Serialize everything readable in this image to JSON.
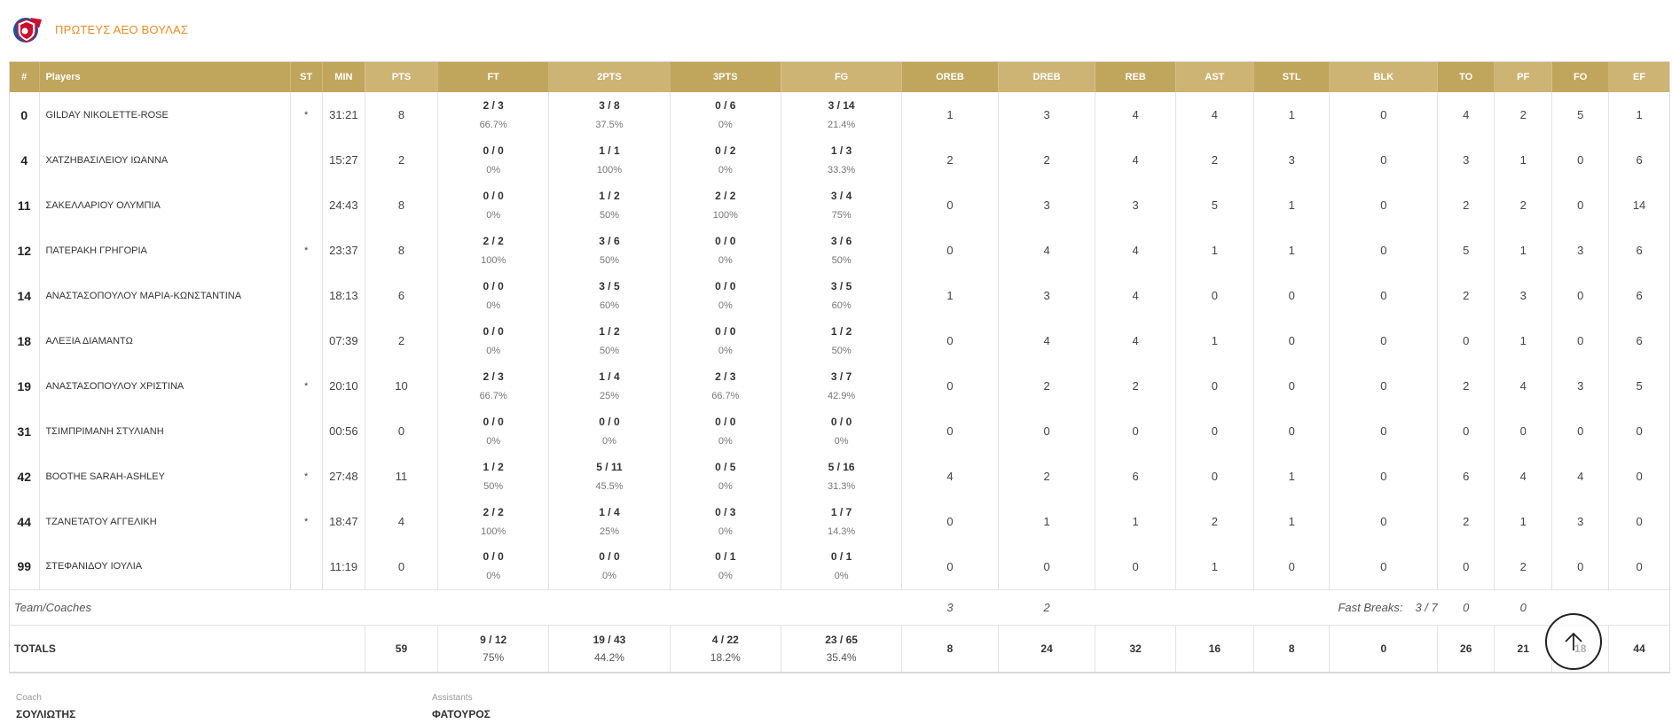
{
  "team": {
    "name": "ΠΡΩΤΕΥΣ ΑΕΟ ΒΟΥΛΑΣ",
    "logo_icon": "team-logo-icon",
    "accent_color": "#f08a24"
  },
  "header_color": "#c0a55c",
  "columns": [
    "#",
    "Players",
    "ST",
    "MIN",
    "PTS",
    "FT",
    "2PTS",
    "3PTS",
    "FG",
    "OREB",
    "DREB",
    "REB",
    "AST",
    "STL",
    "BLK",
    "TO",
    "PF",
    "FO",
    "EF"
  ],
  "players": [
    {
      "num": "0",
      "name": "GILDAY NIKOLETTE-ROSE",
      "st": "*",
      "min": "31:21",
      "pts": "8",
      "ft": "2 / 3",
      "ft_pct": "66.7%",
      "p2": "3 / 8",
      "p2_pct": "37.5%",
      "p3": "0 / 6",
      "p3_pct": "0%",
      "fg": "3 / 14",
      "fg_pct": "21.4%",
      "oreb": "1",
      "dreb": "3",
      "reb": "4",
      "ast": "4",
      "stl": "1",
      "blk": "0",
      "to": "4",
      "pf": "2",
      "fo": "5",
      "ef": "1"
    },
    {
      "num": "4",
      "name": "ΧΑΤΖΗΒΑΣΙΛΕΙΟΥ ΙΩΑΝΝΑ",
      "st": "",
      "min": "15:27",
      "pts": "2",
      "ft": "0 / 0",
      "ft_pct": "0%",
      "p2": "1 / 1",
      "p2_pct": "100%",
      "p3": "0 / 2",
      "p3_pct": "0%",
      "fg": "1 / 3",
      "fg_pct": "33.3%",
      "oreb": "2",
      "dreb": "2",
      "reb": "4",
      "ast": "2",
      "stl": "3",
      "blk": "0",
      "to": "3",
      "pf": "1",
      "fo": "0",
      "ef": "6"
    },
    {
      "num": "11",
      "name": "ΣΑΚΕΛΛΑΡΙΟΥ ΟΛΥΜΠΙΑ",
      "st": "",
      "min": "24:43",
      "pts": "8",
      "ft": "0 / 0",
      "ft_pct": "0%",
      "p2": "1 / 2",
      "p2_pct": "50%",
      "p3": "2 / 2",
      "p3_pct": "100%",
      "fg": "3 / 4",
      "fg_pct": "75%",
      "oreb": "0",
      "dreb": "3",
      "reb": "3",
      "ast": "5",
      "stl": "1",
      "blk": "0",
      "to": "2",
      "pf": "2",
      "fo": "0",
      "ef": "14"
    },
    {
      "num": "12",
      "name": "ΠΑΤΕΡΑΚΗ ΓΡΗΓΟΡΙΑ",
      "st": "*",
      "min": "23:37",
      "pts": "8",
      "ft": "2 / 2",
      "ft_pct": "100%",
      "p2": "3 / 6",
      "p2_pct": "50%",
      "p3": "0 / 0",
      "p3_pct": "0%",
      "fg": "3 / 6",
      "fg_pct": "50%",
      "oreb": "0",
      "dreb": "4",
      "reb": "4",
      "ast": "1",
      "stl": "1",
      "blk": "0",
      "to": "5",
      "pf": "1",
      "fo": "3",
      "ef": "6"
    },
    {
      "num": "14",
      "name": "ΑΝΑΣΤΑΣΟΠΟΥΛΟΥ ΜΑΡΙΑ-ΚΩΝΣΤΑΝΤΙΝΑ",
      "st": "",
      "min": "18:13",
      "pts": "6",
      "ft": "0 / 0",
      "ft_pct": "0%",
      "p2": "3 / 5",
      "p2_pct": "60%",
      "p3": "0 / 0",
      "p3_pct": "0%",
      "fg": "3 / 5",
      "fg_pct": "60%",
      "oreb": "1",
      "dreb": "3",
      "reb": "4",
      "ast": "0",
      "stl": "0",
      "blk": "0",
      "to": "2",
      "pf": "3",
      "fo": "0",
      "ef": "6"
    },
    {
      "num": "18",
      "name": "ΑΛΕΞΙΑ ΔΙΑΜΑΝΤΩ",
      "st": "",
      "min": "07:39",
      "pts": "2",
      "ft": "0 / 0",
      "ft_pct": "0%",
      "p2": "1 / 2",
      "p2_pct": "50%",
      "p3": "0 / 0",
      "p3_pct": "0%",
      "fg": "1 / 2",
      "fg_pct": "50%",
      "oreb": "0",
      "dreb": "4",
      "reb": "4",
      "ast": "1",
      "stl": "0",
      "blk": "0",
      "to": "0",
      "pf": "1",
      "fo": "0",
      "ef": "6"
    },
    {
      "num": "19",
      "name": "ΑΝΑΣΤΑΣΟΠΟΥΛΟΥ ΧΡΙΣΤΙΝΑ",
      "st": "*",
      "min": "20:10",
      "pts": "10",
      "ft": "2 / 3",
      "ft_pct": "66.7%",
      "p2": "1 / 4",
      "p2_pct": "25%",
      "p3": "2 / 3",
      "p3_pct": "66.7%",
      "fg": "3 / 7",
      "fg_pct": "42.9%",
      "oreb": "0",
      "dreb": "2",
      "reb": "2",
      "ast": "0",
      "stl": "0",
      "blk": "0",
      "to": "2",
      "pf": "4",
      "fo": "3",
      "ef": "5"
    },
    {
      "num": "31",
      "name": "ΤΣΙΜΠΡΙΜΑΝΗ ΣΤΥΛΙΑΝΗ",
      "st": "",
      "min": "00:56",
      "pts": "0",
      "ft": "0 / 0",
      "ft_pct": "0%",
      "p2": "0 / 0",
      "p2_pct": "0%",
      "p3": "0 / 0",
      "p3_pct": "0%",
      "fg": "0 / 0",
      "fg_pct": "0%",
      "oreb": "0",
      "dreb": "0",
      "reb": "0",
      "ast": "0",
      "stl": "0",
      "blk": "0",
      "to": "0",
      "pf": "0",
      "fo": "0",
      "ef": "0"
    },
    {
      "num": "42",
      "name": "BOOTHE SARAH-ASHLEY",
      "st": "*",
      "min": "27:48",
      "pts": "11",
      "ft": "1 / 2",
      "ft_pct": "50%",
      "p2": "5 / 11",
      "p2_pct": "45.5%",
      "p3": "0 / 5",
      "p3_pct": "0%",
      "fg": "5 / 16",
      "fg_pct": "31.3%",
      "oreb": "4",
      "dreb": "2",
      "reb": "6",
      "ast": "0",
      "stl": "1",
      "blk": "0",
      "to": "6",
      "pf": "4",
      "fo": "4",
      "ef": "0"
    },
    {
      "num": "44",
      "name": "ΤΖΑΝΕΤΑΤΟΥ ΑΓΓΕΛΙΚΗ",
      "st": "*",
      "min": "18:47",
      "pts": "4",
      "ft": "2 / 2",
      "ft_pct": "100%",
      "p2": "1 / 4",
      "p2_pct": "25%",
      "p3": "0 / 3",
      "p3_pct": "0%",
      "fg": "1 / 7",
      "fg_pct": "14.3%",
      "oreb": "0",
      "dreb": "1",
      "reb": "1",
      "ast": "2",
      "stl": "1",
      "blk": "0",
      "to": "2",
      "pf": "1",
      "fo": "3",
      "ef": "0"
    },
    {
      "num": "99",
      "name": "ΣΤΕΦΑΝΙΔΟΥ ΙΟΥΛΙΑ",
      "st": "",
      "min": "11:19",
      "pts": "0",
      "ft": "0 / 0",
      "ft_pct": "0%",
      "p2": "0 / 0",
      "p2_pct": "0%",
      "p3": "0 / 1",
      "p3_pct": "0%",
      "fg": "0 / 1",
      "fg_pct": "0%",
      "oreb": "0",
      "dreb": "0",
      "reb": "0",
      "ast": "1",
      "stl": "0",
      "blk": "0",
      "to": "0",
      "pf": "2",
      "fo": "0",
      "ef": "0"
    }
  ],
  "team_coaches": {
    "label": "Team/Coaches",
    "oreb": "3",
    "dreb": "2",
    "fast_breaks_label": "Fast Breaks:",
    "fast_breaks_value": "3 / 7",
    "to": "0",
    "pf": "0"
  },
  "totals": {
    "label": "TOTALS",
    "pts": "59",
    "ft": "9 / 12",
    "ft_pct": "75%",
    "p2": "19 / 43",
    "p2_pct": "44.2%",
    "p3": "4 / 22",
    "p3_pct": "18.2%",
    "fg": "23 / 65",
    "fg_pct": "35.4%",
    "oreb": "8",
    "dreb": "24",
    "reb": "32",
    "ast": "16",
    "stl": "8",
    "blk": "0",
    "to": "26",
    "pf": "21",
    "fo": "18",
    "ef": "44"
  },
  "staff": {
    "coach_label": "Coach",
    "coach_name": "ΣΟΥΛΙΩΤΗΣ",
    "assistants_label": "Assistants",
    "assistants_name": "ΦΑΤΟΥΡΟΣ"
  },
  "scroll_top_icon": "arrow-up-icon"
}
